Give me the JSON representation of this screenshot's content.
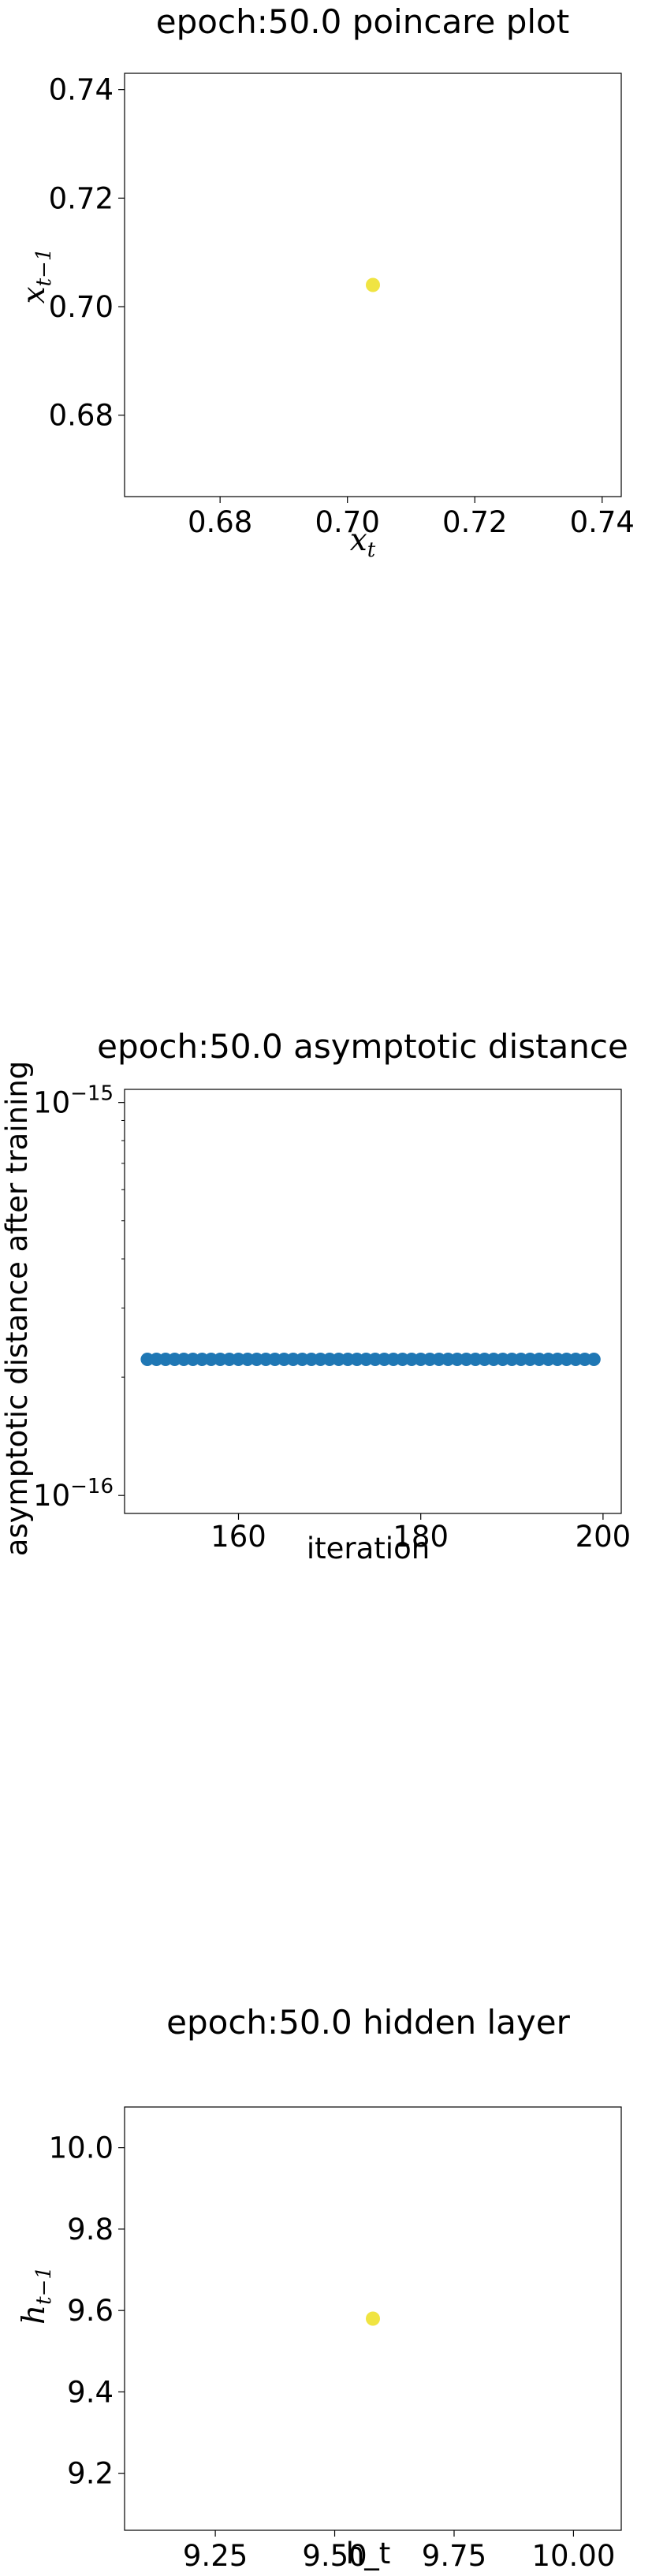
{
  "chart_data": [
    {
      "type": "scatter",
      "title": "epoch:50.0 poincare plot",
      "xlabel_main": "x",
      "xlabel_sub": "t",
      "ylabel_main": "x",
      "ylabel_sub": "t−1",
      "xlim": [
        0.665,
        0.743
      ],
      "ylim": [
        0.665,
        0.743
      ],
      "x_ticks": [
        0.68,
        0.7,
        0.72,
        0.74
      ],
      "x_tick_labels": [
        "0.68",
        "0.70",
        "0.72",
        "0.74"
      ],
      "y_ticks": [
        0.68,
        0.7,
        0.72,
        0.74
      ],
      "y_tick_labels": [
        "0.68",
        "0.70",
        "0.72",
        "0.74"
      ],
      "point_color": "#f0e442",
      "points": [
        {
          "x": 0.704,
          "y": 0.704
        }
      ],
      "grid": false,
      "legend": "none"
    },
    {
      "type": "scatter",
      "title": "epoch:50.0 asymptotic distance",
      "xlabel": "iteration",
      "ylabel": "asymptotic distance after training",
      "xlim": [
        147.5,
        202
      ],
      "ylim": [
        9e-17,
        1.08e-15
      ],
      "y_scale": "log",
      "x_ticks": [
        160,
        180,
        200
      ],
      "x_tick_labels": [
        "160",
        "180",
        "200"
      ],
      "y_ticks": [
        1e-16,
        1e-15
      ],
      "y_tick_bases": [
        "10",
        "10"
      ],
      "y_tick_exps": [
        "−16",
        "−15"
      ],
      "point_color": "#1f77b4",
      "x": [
        150,
        151,
        152,
        153,
        154,
        155,
        156,
        157,
        158,
        159,
        160,
        161,
        162,
        163,
        164,
        165,
        166,
        167,
        168,
        169,
        170,
        171,
        172,
        173,
        174,
        175,
        176,
        177,
        178,
        179,
        180,
        181,
        182,
        183,
        184,
        185,
        186,
        187,
        188,
        189,
        190,
        191,
        192,
        193,
        194,
        195,
        196,
        197,
        198,
        199
      ],
      "y_constant": 2.22e-16,
      "grid": false,
      "legend": "none"
    },
    {
      "type": "scatter",
      "title": "epoch:50.0 hidden layer",
      "xlabel": "h_t",
      "ylabel_main": "h",
      "ylabel_sub": "t−1",
      "xlim": [
        9.06,
        10.1
      ],
      "ylim": [
        9.06,
        10.1
      ],
      "x_ticks": [
        9.25,
        9.5,
        9.75,
        10.0
      ],
      "x_tick_labels": [
        "9.25",
        "9.50",
        "9.75",
        "10.00"
      ],
      "y_ticks": [
        9.2,
        9.4,
        9.6,
        9.8,
        10.0
      ],
      "y_tick_labels": [
        "9.2",
        "9.4",
        "9.6",
        "9.8",
        "10.0"
      ],
      "point_color": "#f0e442",
      "points": [
        {
          "x": 9.58,
          "y": 9.58
        }
      ],
      "grid": false,
      "legend": "none"
    }
  ]
}
